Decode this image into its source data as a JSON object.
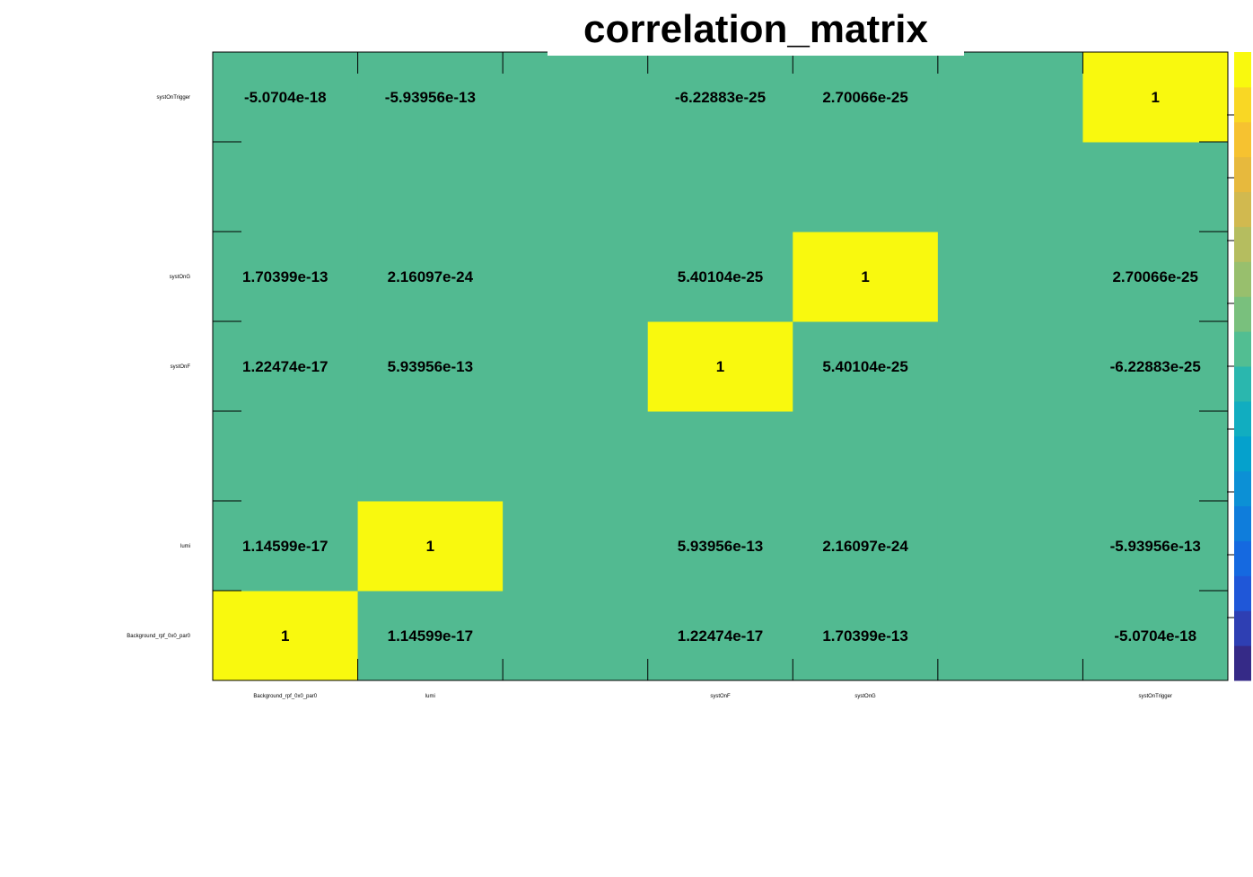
{
  "chart_data": {
    "type": "heatmap",
    "title": "correlation_matrix",
    "x_labels": [
      "Background_rpf_0x0_par0",
      "lumi",
      "",
      "systOnF",
      "systOnG",
      "",
      "systOnTrigger"
    ],
    "y_labels": [
      "Background_rpf_0x0_par0",
      "lumi",
      "",
      "systOnF",
      "systOnG",
      "",
      "systOnTrigger"
    ],
    "cells": [
      [
        "1",
        "1.14599e-17",
        "",
        "1.22474e-17",
        "1.70399e-13",
        "",
        "-5.0704e-18"
      ],
      [
        "1.14599e-17",
        "1",
        "",
        "5.93956e-13",
        "2.16097e-24",
        "",
        "-5.93956e-13"
      ],
      [
        "",
        "",
        "",
        "",
        "",
        "",
        ""
      ],
      [
        "1.22474e-17",
        "5.93956e-13",
        "",
        "1",
        "5.40104e-25",
        "",
        "-6.22883e-25"
      ],
      [
        "1.70399e-13",
        "2.16097e-24",
        "",
        "5.40104e-25",
        "1",
        "",
        "2.70066e-25"
      ],
      [
        "",
        "",
        "",
        "",
        "",
        "",
        ""
      ],
      [
        "-5.0704e-18",
        "-5.93956e-13",
        "",
        "-6.22883e-25",
        "2.70066e-25",
        "",
        "1"
      ]
    ],
    "values": [
      [
        1,
        1.14599e-17,
        0,
        1.22474e-17,
        1.70399e-13,
        0,
        -5.0704e-18
      ],
      [
        1.14599e-17,
        1,
        0,
        5.93956e-13,
        2.16097e-24,
        0,
        -5.93956e-13
      ],
      [
        0,
        0,
        0,
        0,
        0,
        0,
        0
      ],
      [
        1.22474e-17,
        5.93956e-13,
        0,
        1,
        5.40104e-25,
        0,
        -6.22883e-25
      ],
      [
        1.70399e-13,
        2.16097e-24,
        0,
        5.40104e-25,
        1,
        0,
        2.70066e-25
      ],
      [
        0,
        0,
        0,
        0,
        0,
        0,
        0
      ],
      [
        -5.0704e-18,
        -5.93956e-13,
        0,
        -6.22883e-25,
        2.70066e-25,
        0,
        1
      ]
    ],
    "zlim": [
      -1,
      1
    ],
    "palette": [
      "#352a87",
      "#2e3fb3",
      "#1f57d8",
      "#1569e0",
      "#0f7ddb",
      "#0c90d5",
      "#05a1cc",
      "#11adc0",
      "#2ab7ae",
      "#52be92",
      "#79c07d",
      "#98bf6d",
      "#b5bd5f",
      "#d1b94f",
      "#e7b93d",
      "#f6c230",
      "#f9d724",
      "#f9f90e"
    ],
    "cell_default_color": "#52ba91",
    "grid": false
  }
}
